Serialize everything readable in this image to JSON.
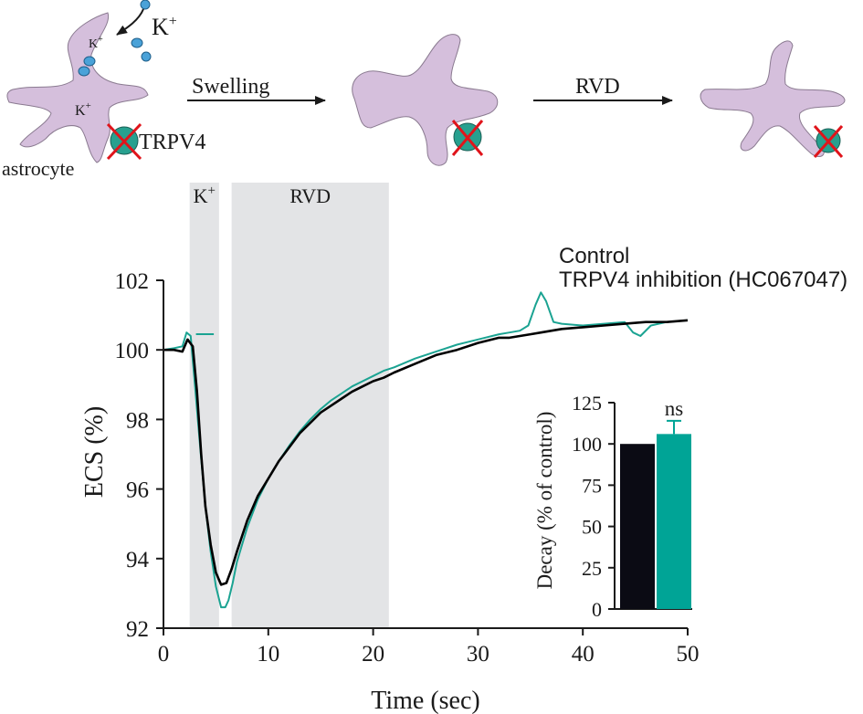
{
  "schematic": {
    "cell_label": "astrocyte",
    "ion_label": "K",
    "ion_superscript": "+",
    "channel_label": "TRPV4",
    "arrow1_label": "Swelling",
    "arrow2_label": "RVD",
    "colors": {
      "cell": "#d5bfdc",
      "channel": "#27a08f",
      "cross": "#e0141b",
      "ion": "#4aa2d8"
    }
  },
  "chart_data": [
    {
      "type": "line",
      "xlabel": "Time (sec)",
      "ylabel": "ECS (%)",
      "xlim": [
        0,
        50
      ],
      "ylim": [
        92,
        102
      ],
      "xticks": [
        "0",
        "10",
        "20",
        "30",
        "40",
        "50"
      ],
      "yticks": [
        "92",
        "94",
        "96",
        "98",
        "100",
        "102"
      ],
      "shaded_regions": [
        {
          "label": "K",
          "label_sup": "+",
          "x": [
            2.5,
            5.3
          ]
        },
        {
          "label": "RVD",
          "label_sup": "",
          "x": [
            6.5,
            21.5
          ]
        }
      ],
      "legend": {
        "placement": "top-right"
      },
      "series": [
        {
          "name": "Control",
          "color": "#000000",
          "x": [
            0,
            1,
            1.8,
            2.3,
            2.8,
            3.2,
            3.6,
            4.0,
            4.5,
            5.0,
            5.5,
            6.0,
            6.5,
            7.0,
            8,
            9,
            10,
            11,
            12,
            13,
            14,
            15,
            16,
            17,
            18,
            19,
            20,
            21,
            22,
            24,
            26,
            28,
            30,
            32,
            33,
            34,
            35,
            36,
            38,
            40,
            42,
            44,
            46,
            48,
            50
          ],
          "y": [
            100.0,
            100.0,
            99.95,
            100.3,
            100.1,
            98.8,
            97.0,
            95.5,
            94.4,
            93.6,
            93.25,
            93.3,
            93.7,
            94.2,
            95.1,
            95.8,
            96.3,
            96.8,
            97.2,
            97.6,
            97.9,
            98.2,
            98.4,
            98.6,
            98.8,
            98.95,
            99.1,
            99.2,
            99.35,
            99.6,
            99.85,
            100.0,
            100.2,
            100.35,
            100.35,
            100.4,
            100.45,
            100.5,
            100.6,
            100.65,
            100.7,
            100.75,
            100.8,
            100.8,
            100.85
          ]
        },
        {
          "name": "TRPV4 inhibition (HC067047)",
          "color": "#1ba392",
          "x": [
            0,
            1,
            1.8,
            2.2,
            2.6,
            3.0,
            3.5,
            4.0,
            4.5,
            5.0,
            5.5,
            5.9,
            6.2,
            6.6,
            7.0,
            8,
            9,
            10,
            11,
            12,
            13,
            14,
            15,
            16,
            17,
            18,
            19,
            20,
            21,
            22,
            24,
            26,
            28,
            30,
            32,
            33,
            34,
            34.8,
            35.5,
            36.0,
            36.5,
            37.2,
            38,
            40,
            42,
            44,
            44.8,
            45.5,
            46.5,
            48,
            50
          ],
          "y": [
            100.0,
            100.05,
            100.1,
            100.5,
            100.4,
            99.0,
            97.2,
            95.5,
            94.2,
            93.2,
            92.6,
            92.6,
            92.8,
            93.3,
            93.9,
            94.9,
            95.7,
            96.3,
            96.8,
            97.25,
            97.65,
            98.0,
            98.3,
            98.55,
            98.75,
            98.95,
            99.1,
            99.25,
            99.4,
            99.5,
            99.75,
            99.95,
            100.15,
            100.3,
            100.45,
            100.5,
            100.55,
            100.7,
            101.3,
            101.65,
            101.4,
            100.8,
            100.75,
            100.7,
            100.75,
            100.8,
            100.5,
            100.4,
            100.7,
            100.8,
            100.85
          ]
        }
      ],
      "annotations": {
        "stub_x": [
          3.1,
          4.8
        ],
        "stub_y": 100.45
      }
    },
    {
      "type": "bar",
      "ylabel": "Decay (% of control)",
      "ylim": [
        0,
        125
      ],
      "yticks": [
        "0",
        "25",
        "50",
        "75",
        "100",
        "125"
      ],
      "categories": [
        "Control",
        "TRPV4 inhibition (HC067047)"
      ],
      "values": [
        100,
        106
      ],
      "error": [
        0,
        8
      ],
      "colors": [
        "#0b0b14",
        "#00a496"
      ],
      "annotation": "ns"
    }
  ]
}
